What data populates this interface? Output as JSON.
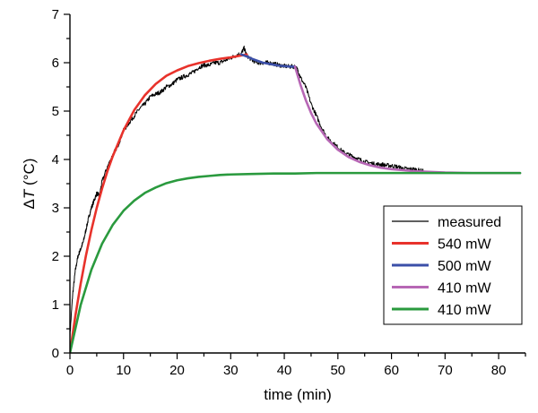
{
  "chart_data": {
    "type": "line",
    "xlabel": "time (min)",
    "ylabel_symbol": "Δ",
    "ylabel_var": "T",
    "ylabel_unit": " (°C)",
    "xlim": [
      0,
      85
    ],
    "ylim": [
      0,
      7
    ],
    "xticks": [
      0,
      10,
      20,
      30,
      40,
      50,
      60,
      70,
      80
    ],
    "yticks": [
      0,
      1,
      2,
      3,
      4,
      5,
      6,
      7
    ],
    "legend_position": "right-middle",
    "series": [
      {
        "name": "measured",
        "color": "#000000",
        "x": [
          0,
          0.5,
          1,
          1.5,
          2,
          2.5,
          3,
          3.5,
          4,
          4.5,
          5,
          5.5,
          6,
          7,
          8,
          9,
          10,
          11,
          12,
          13,
          14,
          15,
          16,
          17,
          18,
          19,
          20,
          21,
          22,
          23,
          24,
          25,
          26,
          27,
          28,
          29,
          30,
          31,
          32,
          32.5,
          33,
          34,
          35,
          36,
          37,
          38,
          39,
          40,
          41,
          42,
          42.5,
          43,
          44,
          45,
          46,
          47,
          48,
          49,
          50,
          51,
          52,
          53,
          54,
          55,
          56,
          57,
          58,
          59,
          60,
          61,
          62,
          63,
          64,
          65,
          66
        ],
        "y": [
          0.35,
          1.2,
          1.7,
          2.0,
          2.15,
          2.3,
          2.55,
          2.8,
          3.0,
          3.15,
          3.3,
          3.25,
          3.55,
          3.85,
          4.1,
          4.3,
          4.6,
          4.75,
          4.9,
          5.05,
          5.15,
          5.3,
          5.35,
          5.4,
          5.5,
          5.55,
          5.65,
          5.7,
          5.75,
          5.8,
          5.9,
          5.95,
          5.95,
          6.0,
          6.0,
          6.05,
          6.1,
          6.15,
          6.2,
          6.3,
          6.15,
          6.05,
          6.0,
          6.0,
          6.0,
          5.98,
          5.95,
          5.93,
          5.92,
          5.92,
          5.85,
          5.7,
          5.5,
          5.15,
          4.9,
          4.65,
          4.45,
          4.35,
          4.25,
          4.15,
          4.1,
          4.05,
          4.0,
          3.95,
          3.93,
          3.9,
          3.9,
          3.88,
          3.87,
          3.85,
          3.82,
          3.8,
          3.8,
          3.78,
          3.76
        ]
      },
      {
        "name": "540 mW",
        "color": "#e8322b",
        "x": [
          0,
          1,
          2,
          3,
          4,
          5,
          6,
          7,
          8,
          10,
          12,
          14,
          16,
          18,
          20,
          22,
          24,
          26,
          28,
          30,
          32,
          33
        ],
        "y": [
          0,
          0.76,
          1.43,
          2.02,
          2.54,
          3.0,
          3.4,
          3.76,
          4.07,
          4.6,
          5.02,
          5.33,
          5.56,
          5.73,
          5.84,
          5.93,
          5.99,
          6.04,
          6.08,
          6.11,
          6.15,
          6.17
        ]
      },
      {
        "name": "500 mW",
        "color": "#3b4fa8",
        "x": [
          32,
          33,
          34,
          35,
          36,
          37,
          38,
          39,
          40,
          41,
          42
        ],
        "y": [
          6.17,
          6.13,
          6.08,
          6.04,
          6.0,
          5.98,
          5.96,
          5.94,
          5.93,
          5.92,
          5.92
        ]
      },
      {
        "name": "410 mW",
        "color": "#b767b5",
        "x": [
          42,
          43,
          44,
          45,
          46,
          48,
          50,
          52,
          54,
          56,
          58,
          60,
          62,
          64,
          66,
          70,
          75,
          80,
          84
        ],
        "y": [
          5.92,
          5.55,
          5.23,
          4.96,
          4.74,
          4.42,
          4.2,
          4.05,
          3.95,
          3.88,
          3.83,
          3.8,
          3.78,
          3.76,
          3.75,
          3.73,
          3.72,
          3.72,
          3.72
        ]
      },
      {
        "name": "410 mW",
        "color": "#2a9a3e",
        "x": [
          0,
          2,
          4,
          6,
          8,
          10,
          12,
          14,
          16,
          18,
          20,
          22,
          24,
          26,
          28,
          30,
          34,
          38,
          42,
          46,
          50,
          60,
          70,
          84
        ],
        "y": [
          0,
          0.99,
          1.72,
          2.26,
          2.65,
          2.94,
          3.15,
          3.31,
          3.42,
          3.51,
          3.57,
          3.61,
          3.64,
          3.66,
          3.68,
          3.69,
          3.7,
          3.71,
          3.71,
          3.72,
          3.72,
          3.72,
          3.72,
          3.72
        ]
      }
    ]
  }
}
